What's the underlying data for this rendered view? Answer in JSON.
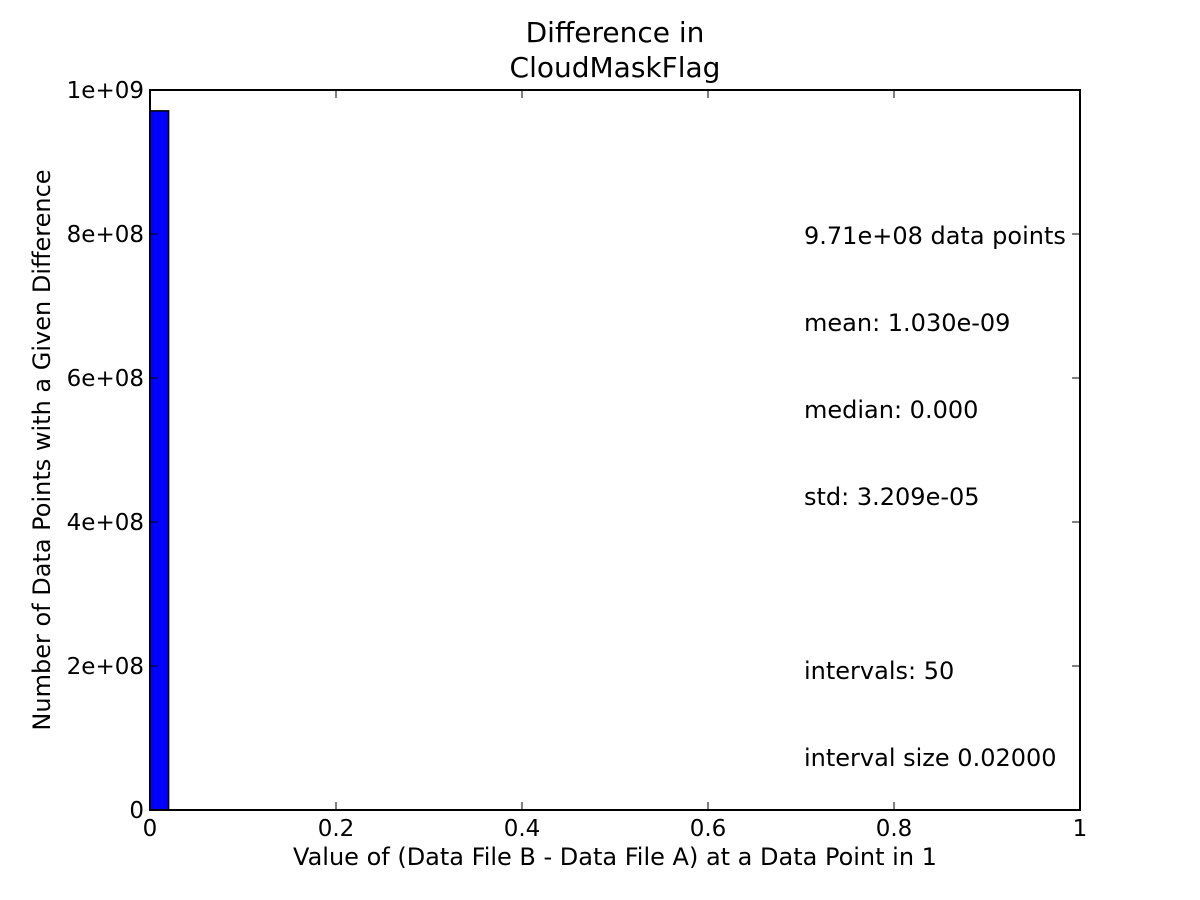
{
  "chart_data": {
    "type": "bar",
    "title": [
      "Difference in",
      "CloudMaskFlag"
    ],
    "xlabel": "Value of (Data File B - Data File A) at a Data Point in 1",
    "ylabel": "Number of Data Points with a Given Difference",
    "xlim": [
      0,
      1
    ],
    "ylim": [
      0,
      1000000000
    ],
    "x_ticks": [
      0,
      0.2,
      0.4,
      0.6,
      0.8,
      1
    ],
    "x_tick_labels": [
      "0",
      "0.2",
      "0.4",
      "0.6",
      "0.8",
      "1"
    ],
    "y_ticks": [
      0,
      200000000,
      400000000,
      600000000,
      800000000,
      1000000000
    ],
    "y_tick_labels": [
      "0",
      "2e+08",
      "4e+08",
      "6e+08",
      "8e+08",
      "1e+09"
    ],
    "bins": [
      {
        "x_start": 0.0,
        "x_end": 0.02,
        "count": 971000000
      }
    ],
    "bar_color": "#0000ff",
    "grid": false,
    "annotations": [
      "9.71e+08 data points",
      "mean: 1.030e-09",
      "median: 0.000",
      "std: 3.209e-05",
      "",
      "intervals: 50",
      "interval size 0.02000"
    ]
  }
}
